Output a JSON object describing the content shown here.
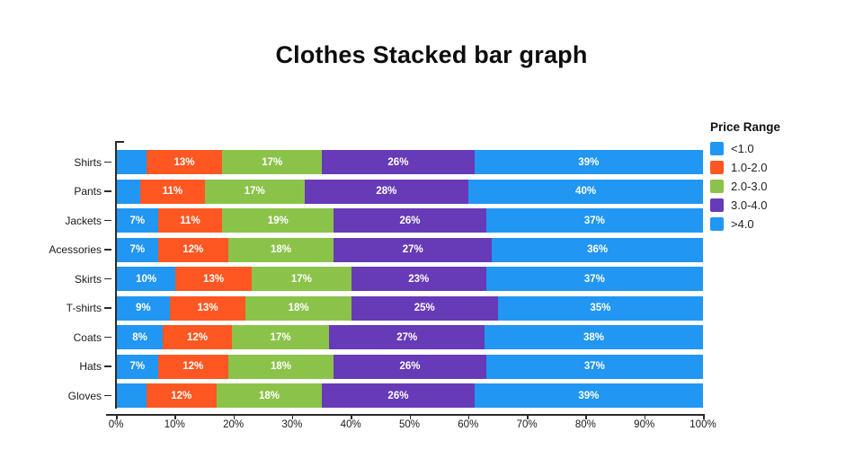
{
  "title": "Clothes Stacked bar graph",
  "legend": {
    "title": "Price Range",
    "items": [
      {
        "label": "<1.0",
        "color": "#2196F3"
      },
      {
        "label": "1.0-2.0",
        "color": "#FF5722"
      },
      {
        "label": "2.0-3.0",
        "color": "#8BC34A"
      },
      {
        "label": "3.0-4.0",
        "color": "#673AB7"
      },
      {
        "label": ">4.0",
        "color": "#2196F3"
      }
    ]
  },
  "chart_data": {
    "type": "bar",
    "stacked": true,
    "orientation": "horizontal",
    "title": "Clothes Stacked bar graph",
    "categories": [
      "Shirts",
      "Pants",
      "Jackets",
      "Acessories",
      "Skirts",
      "T-shirts",
      "Coats",
      "Hats",
      "Gloves"
    ],
    "series": [
      {
        "name": "<1.0",
        "color": "#2196F3",
        "values": [
          5,
          4,
          7,
          7,
          10,
          9,
          8,
          7,
          5
        ],
        "labels": [
          "",
          "",
          "7%",
          "7%",
          "10%",
          "9%",
          "8%",
          "7%",
          ""
        ]
      },
      {
        "name": "1.0-2.0",
        "color": "#FF5722",
        "values": [
          13,
          11,
          11,
          12,
          13,
          13,
          12,
          12,
          12
        ],
        "labels": [
          "13%",
          "11%",
          "11%",
          "12%",
          "13%",
          "13%",
          "12%",
          "12%",
          "12%"
        ]
      },
      {
        "name": "2.0-3.0",
        "color": "#8BC34A",
        "values": [
          17,
          17,
          19,
          18,
          17,
          18,
          17,
          18,
          18
        ],
        "labels": [
          "17%",
          "17%",
          "19%",
          "18%",
          "17%",
          "18%",
          "17%",
          "18%",
          "18%"
        ]
      },
      {
        "name": "3.0-4.0",
        "color": "#673AB7",
        "values": [
          26,
          28,
          26,
          27,
          23,
          25,
          27,
          26,
          26
        ],
        "labels": [
          "26%",
          "28%",
          "26%",
          "27%",
          "23%",
          "25%",
          "27%",
          "26%",
          "26%"
        ]
      },
      {
        "name": ">4.0",
        "color": "#2196F3",
        "values": [
          39,
          40,
          37,
          36,
          37,
          35,
          38,
          37,
          39
        ],
        "labels": [
          "39%",
          "40%",
          "37%",
          "36%",
          "37%",
          "35%",
          "38%",
          "37%",
          "39%"
        ]
      }
    ],
    "xlabel": "",
    "ylabel": "",
    "xlim": [
      0,
      100
    ],
    "x_ticks": [
      "0%",
      "10%",
      "20%",
      "30%",
      "40%",
      "50%",
      "60%",
      "70%",
      "80%",
      "90%",
      "100%"
    ],
    "legend_position": "right",
    "grid": false
  }
}
